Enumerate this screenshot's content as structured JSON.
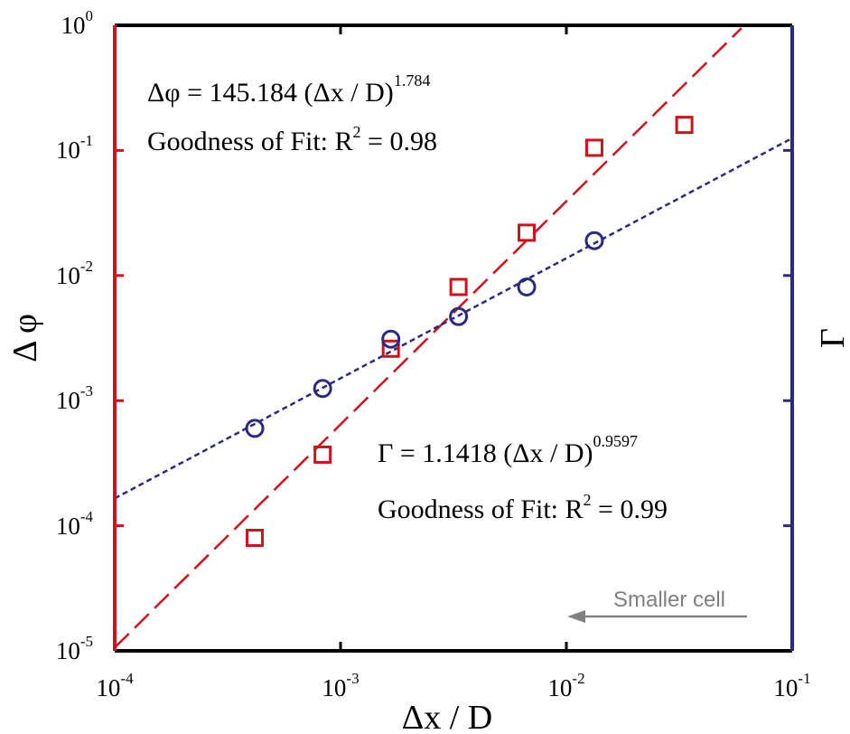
{
  "chart_data": {
    "type": "scatter",
    "x_scale": "log",
    "y_scale": "log",
    "xlim": [
      0.0001,
      0.1
    ],
    "ylim": [
      1e-05,
      1
    ],
    "xlabel": "Δx / D",
    "ylabel_left": "Δ φ",
    "ylabel_right": "Γ",
    "x_ticks": [
      {
        "base": "10",
        "exp": "-4",
        "value": 0.0001
      },
      {
        "base": "10",
        "exp": "-3",
        "value": 0.001
      },
      {
        "base": "10",
        "exp": "-2",
        "value": 0.01
      },
      {
        "base": "10",
        "exp": "-1",
        "value": 0.1
      }
    ],
    "y_ticks": [
      {
        "base": "10",
        "exp": "-5",
        "value": 1e-05
      },
      {
        "base": "10",
        "exp": "-4",
        "value": 0.0001
      },
      {
        "base": "10",
        "exp": "-3",
        "value": 0.001
      },
      {
        "base": "10",
        "exp": "-2",
        "value": 0.01
      },
      {
        "base": "10",
        "exp": "-1",
        "value": 0.1
      },
      {
        "base": "10",
        "exp": "0",
        "value": 1
      }
    ],
    "series": [
      {
        "name": "Δφ",
        "marker": "square",
        "color": "#d0101a",
        "x": [
          0.000417,
          0.000833,
          0.00167,
          0.00333,
          0.00667,
          0.0133,
          0.0333
        ],
        "y": [
          8e-05,
          0.00037,
          0.0026,
          0.0081,
          0.022,
          0.105,
          0.16
        ],
        "fit": {
          "type": "power",
          "coef": 145.184,
          "exponent": 1.784,
          "style": "long-dash"
        }
      },
      {
        "name": "Γ",
        "marker": "circle",
        "color": "#2a2a7e",
        "x": [
          0.000417,
          0.000833,
          0.00167,
          0.00333,
          0.00667,
          0.0133
        ],
        "y": [
          0.0006,
          0.00125,
          0.0031,
          0.0047,
          0.0081,
          0.019
        ],
        "fit": {
          "type": "power",
          "coef": 1.1418,
          "exponent": 0.9597,
          "style": "short-dash"
        }
      }
    ],
    "annotations": {
      "phi_eq_main": "Δφ = 145.184 (Δx / D)",
      "phi_eq_exp": "1.784",
      "phi_gof_main": "Goodness of Fit: R",
      "phi_gof_sup": "2",
      "phi_gof_val": " = 0.98",
      "gamma_eq_main": "Γ = 1.1418 (Δx / D)",
      "gamma_eq_exp": "0.9597",
      "gamma_gof_main": "Goodness of Fit: R",
      "gamma_gof_sup": "2",
      "gamma_gof_val": " = 0.99",
      "arrow_label": "Smaller cell"
    },
    "colors": {
      "left_axis": "#d0101a",
      "right_axis": "#2a2a7e",
      "frame": "#000000",
      "hint": "#808080"
    }
  }
}
